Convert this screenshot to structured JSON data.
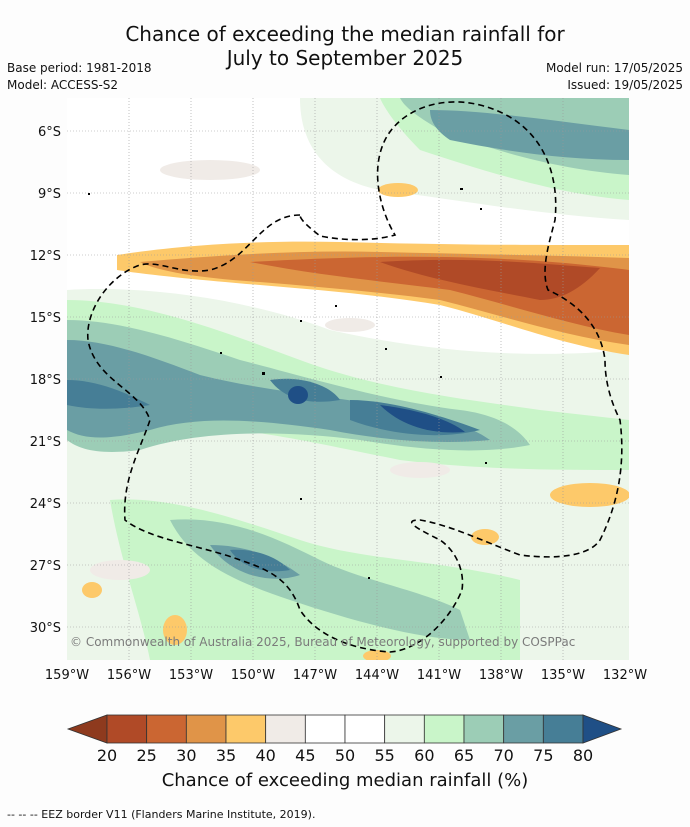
{
  "title": {
    "line1": "Chance of exceeding the median rainfall for",
    "line2": "July to September 2025"
  },
  "meta": {
    "base_period": "Base period: 1981-2018",
    "model": "Model: ACCESS-S2",
    "model_run": "Model run: 17/05/2025",
    "issued": "Issued: 19/05/2025"
  },
  "map": {
    "copyright": "© Commonwealth of Australia 2025, Bureau of Meteorology, supported by COSPPac",
    "lat_labels": [
      "6°S",
      "9°S",
      "12°S",
      "15°S",
      "18°S",
      "21°S",
      "24°S",
      "27°S",
      "30°S"
    ],
    "lon_labels": [
      "159°W",
      "156°W",
      "153°W",
      "150°W",
      "147°W",
      "144°W",
      "141°W",
      "138°W",
      "135°W",
      "132°W"
    ]
  },
  "colorbar": {
    "ticks": [
      "20",
      "25",
      "30",
      "35",
      "40",
      "45",
      "50",
      "55",
      "60",
      "65",
      "70",
      "75",
      "80"
    ],
    "colors": [
      "#b04a27",
      "#cb6632",
      "#e09448",
      "#fdc96a",
      "#f0ebe7",
      "#ffffff",
      "#ffffff",
      "#ecf6ea",
      "#c9f5c9",
      "#9ccdb6",
      "#6a9ea4",
      "#467e96"
    ],
    "low_extend_color": "#8e3a1e",
    "high_extend_color": "#1f4f86",
    "label": "Chance of exceeding median rainfall (%)"
  },
  "footer": "--  --  -- EEZ border V11 (Flanders Marine Institute, 2019)."
}
